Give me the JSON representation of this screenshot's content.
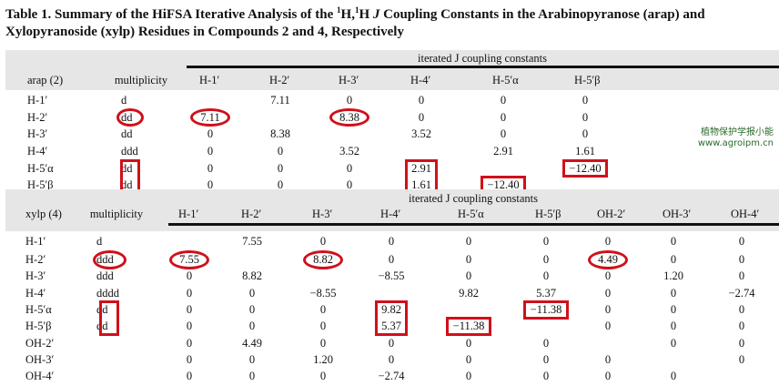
{
  "title": {
    "prefix": "Table 1. Summary of the HiFSA Iterative Analysis of the ",
    "sup1": "1",
    "h1": "H,",
    "sup2": "1",
    "h2": "H ",
    "j": "J",
    "suffix": " Coupling Constants in the Arabinopyranose (arap) and Xylopyranoside (xylp) Residues in Compounds 2 and 4, Respectively"
  },
  "tables": [
    {
      "span_header": "iterated J coupling constants",
      "row_header": "arap (2)",
      "mult_header": "multiplicity",
      "columns": [
        "H-1′",
        "H-2′",
        "H-3′",
        "H-4′",
        "H-5′α",
        "H-5′β"
      ],
      "rows": [
        {
          "label": "H-1′",
          "mult": "d",
          "values": [
            "",
            "7.11",
            "0",
            "0",
            "0",
            "0"
          ]
        },
        {
          "label": "H-2′",
          "mult": "dd",
          "values": [
            "7.11",
            "",
            "8.38",
            "0",
            "0",
            "0"
          ]
        },
        {
          "label": "H-3′",
          "mult": "dd",
          "values": [
            "0",
            "8.38",
            "",
            "3.52",
            "0",
            "0"
          ]
        },
        {
          "label": "H-4′",
          "mult": "ddd",
          "values": [
            "0",
            "0",
            "3.52",
            "",
            "2.91",
            "1.61"
          ]
        },
        {
          "label": "H-5′α",
          "mult": "dd",
          "values": [
            "0",
            "0",
            "0",
            "2.91",
            "",
            "−12.40"
          ]
        },
        {
          "label": "H-5′β",
          "mult": "dd",
          "values": [
            "0",
            "0",
            "0",
            "1.61",
            "−12.40",
            ""
          ]
        }
      ],
      "annotations": [
        {
          "shape": "ellipse",
          "col": "mult",
          "row_start": 1,
          "row_end": 1
        },
        {
          "shape": "ellipse",
          "col": 0,
          "row_start": 1,
          "row_end": 1
        },
        {
          "shape": "ellipse",
          "col": 2,
          "row_start": 1,
          "row_end": 1
        },
        {
          "shape": "box",
          "col": "mult",
          "row_start": 4,
          "row_end": 5
        },
        {
          "shape": "box",
          "col": 3,
          "row_start": 4,
          "row_end": 5
        },
        {
          "shape": "box",
          "col": 5,
          "row_start": 4,
          "row_end": 4
        },
        {
          "shape": "box",
          "col": 4,
          "row_start": 5,
          "row_end": 5
        }
      ]
    },
    {
      "span_header": "iterated J coupling constants",
      "row_header": "xylp (4)",
      "mult_header": "multiplicity",
      "columns": [
        "H-1′",
        "H-2′",
        "H-3′",
        "H-4′",
        "H-5′α",
        "H-5′β",
        "OH-2′",
        "OH-3′",
        "OH-4′"
      ],
      "rows": [
        {
          "label": "H-1′",
          "mult": "d",
          "values": [
            "",
            "7.55",
            "0",
            "0",
            "0",
            "0",
            "0",
            "0",
            "0"
          ]
        },
        {
          "label": "H-2′",
          "mult": "ddd",
          "values": [
            "7.55",
            "",
            "8.82",
            "0",
            "0",
            "0",
            "4.49",
            "0",
            "0"
          ]
        },
        {
          "label": "H-3′",
          "mult": "ddd",
          "values": [
            "0",
            "8.82",
            "",
            "−8.55",
            "0",
            "0",
            "0",
            "1.20",
            "0"
          ]
        },
        {
          "label": "H-4′",
          "mult": "dddd",
          "values": [
            "0",
            "0",
            "−8.55",
            "",
            "9.82",
            "5.37",
            "0",
            "0",
            "−2.74"
          ]
        },
        {
          "label": "H-5′α",
          "mult": "dd",
          "values": [
            "0",
            "0",
            "0",
            "9.82",
            "",
            "−11.38",
            "0",
            "0",
            "0"
          ]
        },
        {
          "label": "H-5′β",
          "mult": "dd",
          "values": [
            "0",
            "0",
            "0",
            "5.37",
            "−11.38",
            "",
            "0",
            "0",
            "0"
          ]
        },
        {
          "label": "OH-2′",
          "mult": "",
          "values": [
            "0",
            "4.49",
            "0",
            "0",
            "0",
            "0",
            "",
            "0",
            "0"
          ]
        },
        {
          "label": "OH-3′",
          "mult": "",
          "values": [
            "0",
            "0",
            "1.20",
            "0",
            "0",
            "0",
            "0",
            "",
            "0"
          ]
        },
        {
          "label": "OH-4′",
          "mult": "",
          "values": [
            "0",
            "0",
            "0",
            "−2.74",
            "0",
            "0",
            "0",
            "0",
            ""
          ]
        }
      ],
      "annotations": [
        {
          "shape": "ellipse",
          "col": "mult",
          "row_start": 1,
          "row_end": 1
        },
        {
          "shape": "ellipse",
          "col": 0,
          "row_start": 1,
          "row_end": 1
        },
        {
          "shape": "ellipse",
          "col": 2,
          "row_start": 1,
          "row_end": 1
        },
        {
          "shape": "ellipse",
          "col": 6,
          "row_start": 1,
          "row_end": 1
        },
        {
          "shape": "box",
          "col": "mult",
          "row_start": 4,
          "row_end": 5
        },
        {
          "shape": "box",
          "col": 3,
          "row_start": 4,
          "row_end": 5
        },
        {
          "shape": "box",
          "col": 5,
          "row_start": 4,
          "row_end": 4
        },
        {
          "shape": "box",
          "col": 4,
          "row_start": 5,
          "row_end": 5
        }
      ]
    }
  ],
  "watermark": {
    "line1": "植物保护学报小能",
    "line2": "www.agroipm.cn"
  },
  "colors": {
    "annotation": "#d0101a",
    "header_band": "#e6e6e6"
  }
}
